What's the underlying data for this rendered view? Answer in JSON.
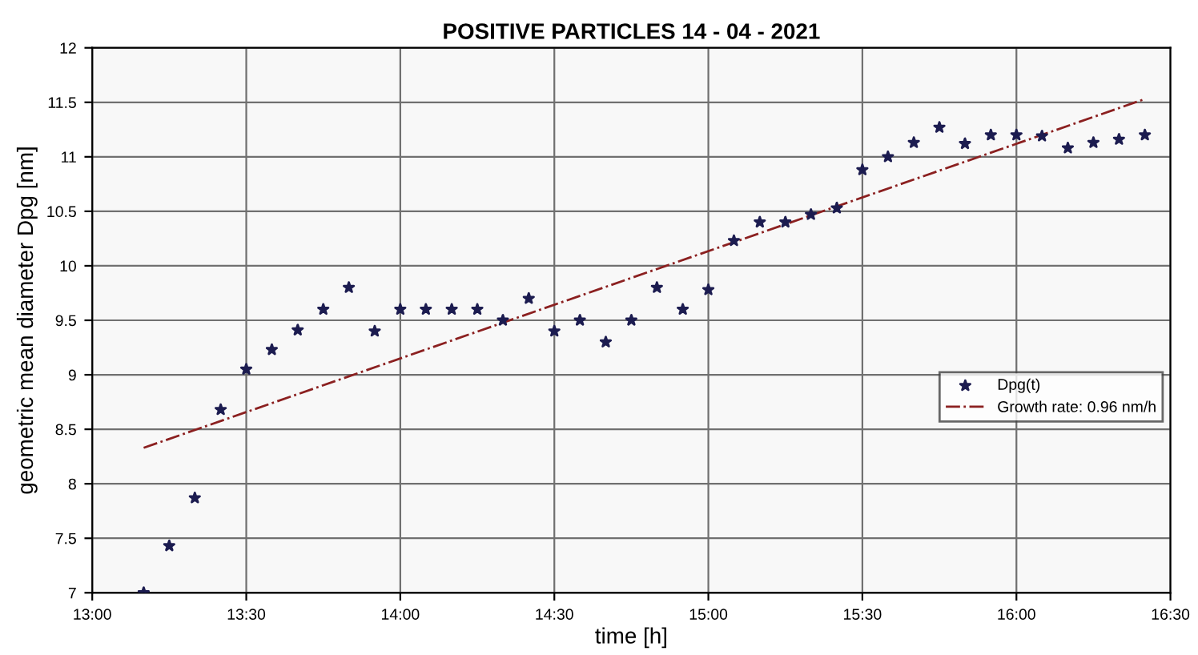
{
  "chart_data": {
    "type": "scatter",
    "title": "POSITIVE PARTICLES 14 - 04 - 2021",
    "xlabel": "time [h]",
    "ylabel": "geometric mean diameter Dpg [nm]",
    "xlim": [
      13,
      16.5
    ],
    "xticks": [
      {
        "value": 13,
        "label": "13:00"
      },
      {
        "value": 13.5,
        "label": "13:30"
      },
      {
        "value": 14,
        "label": "14:00"
      },
      {
        "value": 14.5,
        "label": "14:30"
      },
      {
        "value": 15,
        "label": "15:00"
      },
      {
        "value": 15.5,
        "label": "15:30"
      },
      {
        "value": 16,
        "label": "16:00"
      },
      {
        "value": 16.5,
        "label": "16:30"
      }
    ],
    "ylim": [
      7,
      12
    ],
    "yticks": [
      7,
      7.5,
      8,
      8.5,
      9,
      9.5,
      10,
      10.5,
      11,
      11.5,
      12
    ],
    "grid": true,
    "legend": "bottom right",
    "series": [
      {
        "name": "Dpg(t)",
        "color": "#1c1c50",
        "marker": "star",
        "x": [
          13.167,
          13.25,
          13.333,
          13.417,
          13.5,
          13.583,
          13.667,
          13.75,
          13.833,
          13.917,
          14.0,
          14.083,
          14.167,
          14.25,
          14.333,
          14.417,
          14.5,
          14.583,
          14.667,
          14.75,
          14.833,
          14.917,
          15.0,
          15.083,
          15.167,
          15.25,
          15.333,
          15.417,
          15.5,
          15.583,
          15.667,
          15.75,
          15.833,
          15.917,
          16.0,
          16.083,
          16.167,
          16.25,
          16.333,
          16.417
        ],
        "values": [
          7.0,
          7.43,
          7.87,
          8.68,
          9.05,
          9.23,
          9.41,
          9.6,
          9.8,
          9.4,
          9.6,
          9.6,
          9.6,
          9.6,
          9.5,
          9.7,
          9.4,
          9.5,
          9.3,
          9.5,
          9.8,
          9.6,
          9.78,
          10.23,
          10.4,
          10.4,
          10.47,
          10.53,
          10.88,
          11.0,
          11.13,
          11.27,
          11.12,
          11.2,
          11.2,
          11.19,
          11.08,
          11.13,
          11.16,
          11.2
        ]
      },
      {
        "name": "Growth rate: 0.96 nm/h",
        "type": "line",
        "color": "#8b2020",
        "line_style": "dashdot",
        "marker": "none",
        "x": [
          13.167,
          16.417
        ],
        "values": [
          8.33,
          11.53
        ]
      }
    ]
  }
}
